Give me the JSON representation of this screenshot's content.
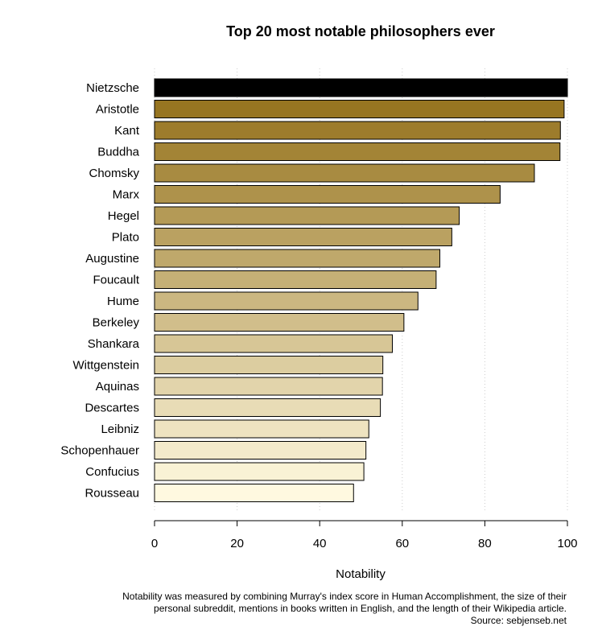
{
  "chart_data": {
    "type": "bar",
    "orientation": "horizontal",
    "title": "Top 20 most notable philosophers ever",
    "xlabel": "Notability",
    "ylabel": "",
    "xlim": [
      0,
      100
    ],
    "xticks": [
      0,
      20,
      40,
      60,
      80,
      100
    ],
    "grid": "vertical dotted",
    "categories": [
      "Nietzsche",
      "Aristotle",
      "Kant",
      "Buddha",
      "Chomsky",
      "Marx",
      "Hegel",
      "Plato",
      "Augustine",
      "Foucault",
      "Hume",
      "Berkeley",
      "Shankara",
      "Wittgenstein",
      "Aquinas",
      "Descartes",
      "Leibniz",
      "Schopenhauer",
      "Confucius",
      "Rousseau"
    ],
    "values": [
      100,
      99.2,
      98.3,
      98.2,
      92.0,
      83.7,
      73.8,
      72.0,
      69.1,
      68.2,
      63.8,
      60.4,
      57.6,
      55.3,
      55.2,
      54.7,
      51.9,
      51.2,
      50.7,
      48.2
    ],
    "colors": {
      "top_bar": "#000000",
      "gradient_dark": "#977521",
      "gradient_light": "#fff9e0",
      "bar_border": "#000000"
    },
    "notes": [
      "Notability was measured by combining Murray's index score in Human Accomplishment, the size of their",
      "personal subreddit, mentions in books written in English, and the length of their Wikipedia article.",
      "Source: sebjenseb.net"
    ]
  }
}
